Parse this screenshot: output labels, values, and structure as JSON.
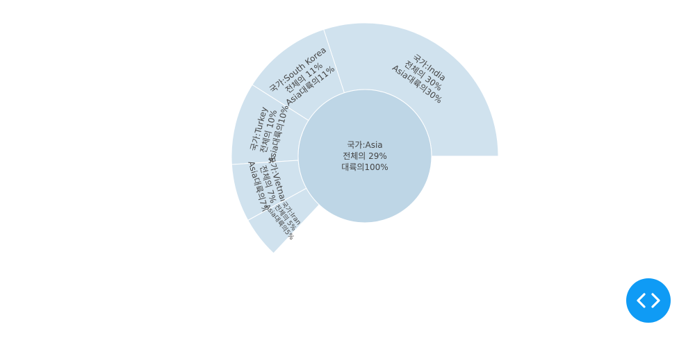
{
  "chart_data": {
    "type": "sunburst",
    "center": {
      "lines": [
        "국가:Asia",
        "전체의 29%",
        "대륙의100%"
      ],
      "color": "#bed6e6"
    },
    "slices": [
      {
        "name": "India",
        "share": 30,
        "lines": [
          "국가:India",
          "전체의 30%",
          "Asia대륙의30%"
        ]
      },
      {
        "name": "South Korea",
        "share": 11,
        "lines": [
          "국가:South Korea",
          "전체의 11%",
          "Asia대륙의11%"
        ]
      },
      {
        "name": "Turkey",
        "share": 10,
        "lines": [
          "국가:Turkey",
          "전체의 10%",
          "Asia대륙의10%"
        ]
      },
      {
        "name": "Vietnam",
        "share": 7,
        "lines": [
          "국가:Vietnam",
          "전체의 7%",
          "Asia대륙의7%"
        ]
      },
      {
        "name": "Iran",
        "share": 5,
        "lines": [
          "국가:Iran",
          "전체의 5%",
          "Asia대륙의5%"
        ]
      }
    ],
    "ring_color": "#d0e2ee"
  },
  "fab": {
    "icon": "code-icon",
    "color": "#0f9bf5"
  }
}
